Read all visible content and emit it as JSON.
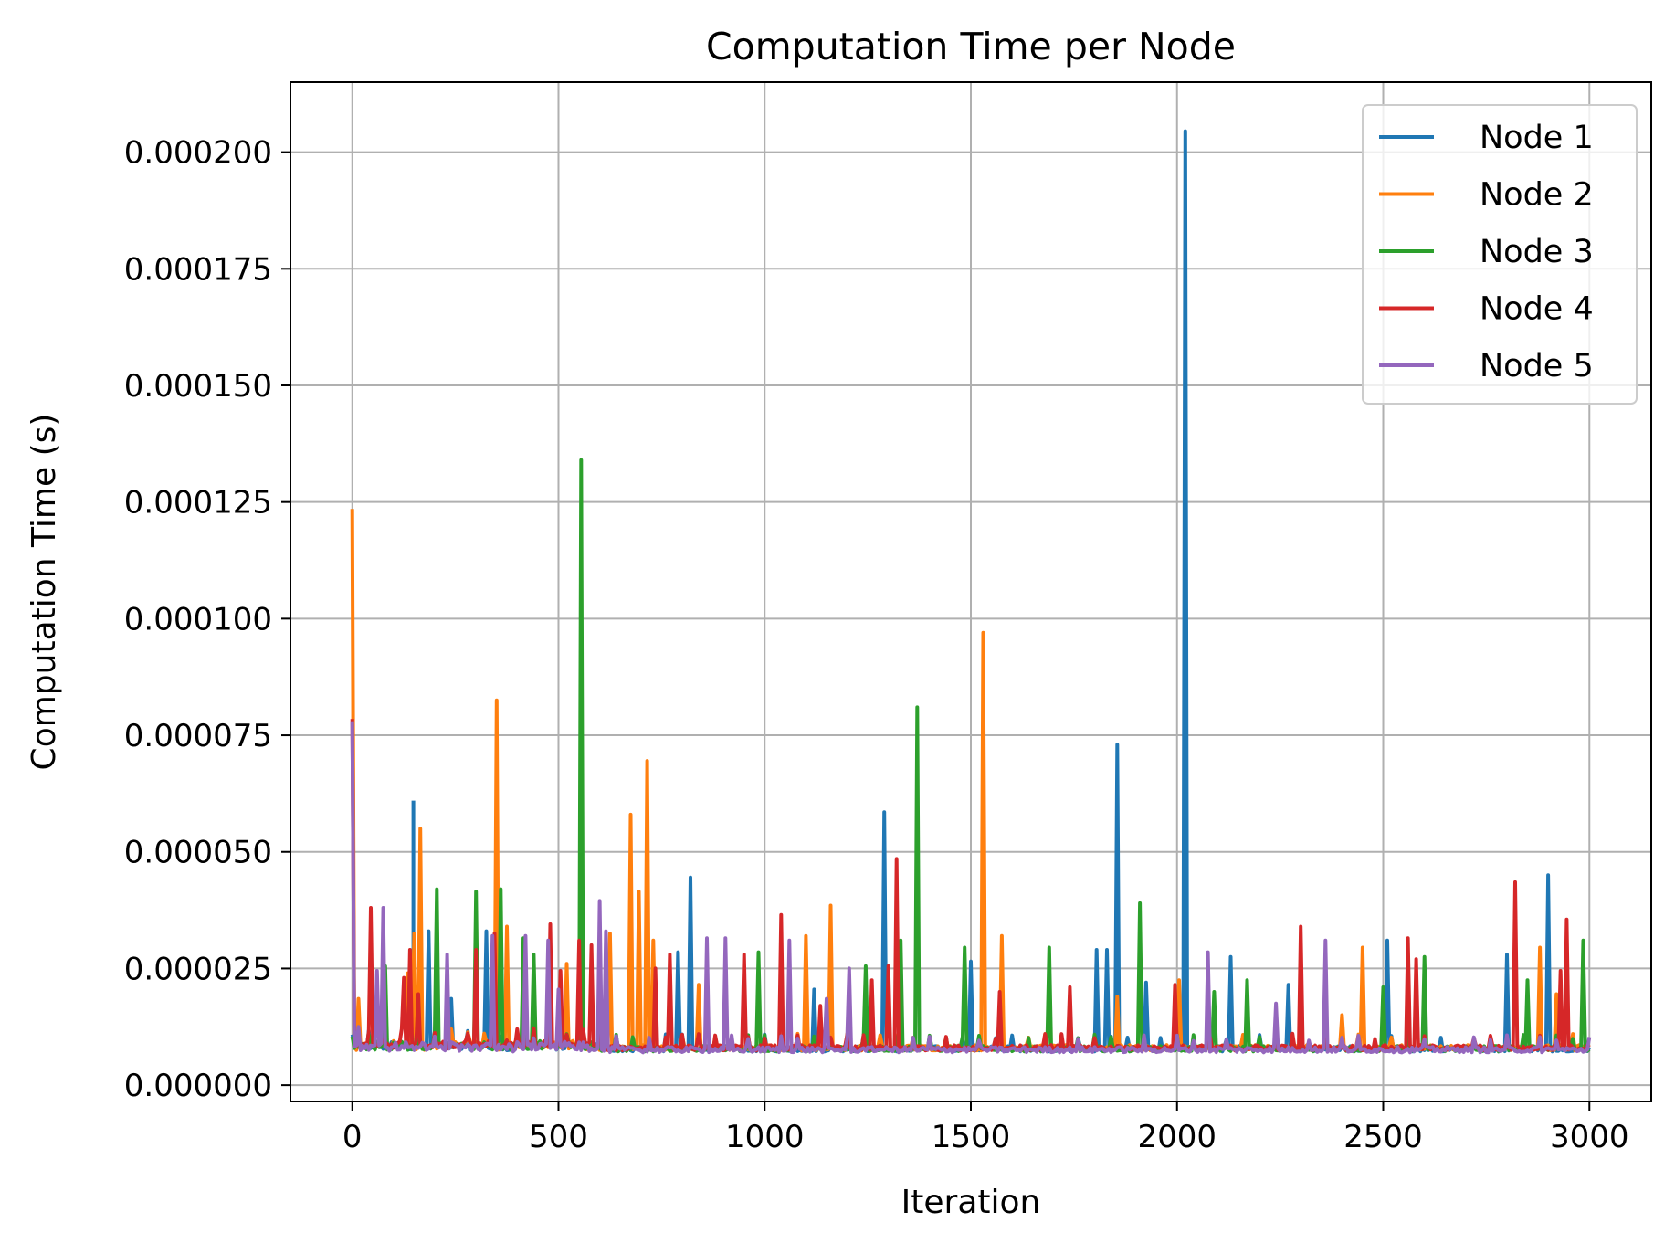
{
  "chart_data": {
    "type": "line",
    "title": "Computation Time per Node",
    "xlabel": "Iteration",
    "ylabel": "Computation Time (s)",
    "xlim": [
      -150,
      3150
    ],
    "ylim": [
      -3.5e-06,
      0.000215
    ],
    "xticks": [
      0,
      500,
      1000,
      1500,
      2000,
      2500,
      3000
    ],
    "xtick_labels": [
      "0",
      "500",
      "1000",
      "1500",
      "2000",
      "2500",
      "3000"
    ],
    "yticks": [
      0.0,
      2.5e-05,
      5e-05,
      7.5e-05,
      0.0001,
      0.000125,
      0.00015,
      0.000175,
      0.0002
    ],
    "ytick_labels": [
      "0.000000",
      "0.000025",
      "0.000050",
      "0.000075",
      "0.000100",
      "0.000125",
      "0.000150",
      "0.000175",
      "0.000200"
    ],
    "grid": true,
    "legend_position": "top-right",
    "series": [
      {
        "name": "Node 1",
        "color": "#1f77b4",
        "baseline": 7.8e-06,
        "spikes": [
          [
            148,
            6.1e-05
          ],
          [
            185,
            3.3e-05
          ],
          [
            240,
            1.85e-05
          ],
          [
            325,
            3.3e-05
          ],
          [
            820,
            4.45e-05
          ],
          [
            790,
            2.85e-05
          ],
          [
            1120,
            2.05e-05
          ],
          [
            1290,
            5.85e-05
          ],
          [
            1500,
            2.65e-05
          ],
          [
            1805,
            2.9e-05
          ],
          [
            1830,
            2.9e-05
          ],
          [
            1855,
            7.3e-05
          ],
          [
            1925,
            2.2e-05
          ],
          [
            2020,
            0.0002045
          ],
          [
            2130,
            2.75e-05
          ],
          [
            2270,
            2.15e-05
          ],
          [
            2510,
            3.1e-05
          ],
          [
            2800,
            2.8e-05
          ],
          [
            2900,
            4.5e-05
          ]
        ]
      },
      {
        "name": "Node 2",
        "color": "#ff7f0e",
        "baseline": 8e-06,
        "spikes": [
          [
            0,
            0.0001235
          ],
          [
            15,
            1.85e-05
          ],
          [
            135,
            2.4e-05
          ],
          [
            150,
            3.25e-05
          ],
          [
            165,
            5.5e-05
          ],
          [
            350,
            8.25e-05
          ],
          [
            375,
            3.4e-05
          ],
          [
            520,
            2.6e-05
          ],
          [
            625,
            3.25e-05
          ],
          [
            675,
            5.8e-05
          ],
          [
            695,
            4.15e-05
          ],
          [
            715,
            6.95e-05
          ],
          [
            730,
            3.1e-05
          ],
          [
            840,
            2.15e-05
          ],
          [
            1100,
            3.2e-05
          ],
          [
            1160,
            3.85e-05
          ],
          [
            1530,
            9.7e-05
          ],
          [
            1575,
            3.2e-05
          ],
          [
            1855,
            1.9e-05
          ],
          [
            2005,
            2.25e-05
          ],
          [
            2400,
            1.5e-05
          ],
          [
            2450,
            2.95e-05
          ],
          [
            2880,
            2.95e-05
          ],
          [
            2920,
            1.95e-05
          ]
        ]
      },
      {
        "name": "Node 3",
        "color": "#2ca02c",
        "baseline": 7.8e-06,
        "spikes": [
          [
            80,
            2.55e-05
          ],
          [
            205,
            4.2e-05
          ],
          [
            300,
            4.15e-05
          ],
          [
            360,
            4.2e-05
          ],
          [
            415,
            3.15e-05
          ],
          [
            440,
            2.8e-05
          ],
          [
            555,
            0.000134
          ],
          [
            985,
            2.85e-05
          ],
          [
            1245,
            2.55e-05
          ],
          [
            1330,
            3.1e-05
          ],
          [
            1370,
            8.1e-05
          ],
          [
            1485,
            2.95e-05
          ],
          [
            1690,
            2.95e-05
          ],
          [
            1910,
            3.9e-05
          ],
          [
            2090,
            2e-05
          ],
          [
            2170,
            2.25e-05
          ],
          [
            2500,
            2.1e-05
          ],
          [
            2600,
            2.75e-05
          ],
          [
            2850,
            2.25e-05
          ],
          [
            2985,
            3.1e-05
          ]
        ]
      },
      {
        "name": "Node 4",
        "color": "#d62728",
        "baseline": 8e-06,
        "spikes": [
          [
            0,
            7.85e-05
          ],
          [
            45,
            3.8e-05
          ],
          [
            125,
            2.3e-05
          ],
          [
            140,
            2.9e-05
          ],
          [
            160,
            1.95e-05
          ],
          [
            300,
            2.9e-05
          ],
          [
            345,
            3.25e-05
          ],
          [
            480,
            3.45e-05
          ],
          [
            505,
            2.45e-05
          ],
          [
            550,
            3.1e-05
          ],
          [
            580,
            3e-05
          ],
          [
            735,
            2.5e-05
          ],
          [
            770,
            2.8e-05
          ],
          [
            950,
            2.8e-05
          ],
          [
            1040,
            3.65e-05
          ],
          [
            1135,
            1.7e-05
          ],
          [
            1260,
            2.25e-05
          ],
          [
            1300,
            2.55e-05
          ],
          [
            1320,
            4.85e-05
          ],
          [
            1570,
            2e-05
          ],
          [
            1740,
            2.1e-05
          ],
          [
            1995,
            2.15e-05
          ],
          [
            2300,
            3.4e-05
          ],
          [
            2560,
            3.15e-05
          ],
          [
            2580,
            2.7e-05
          ],
          [
            2820,
            4.35e-05
          ],
          [
            2930,
            2.45e-05
          ],
          [
            2945,
            3.55e-05
          ]
        ]
      },
      {
        "name": "Node 5",
        "color": "#9467bd",
        "baseline": 7.6e-06,
        "spikes": [
          [
            0,
            7.8e-05
          ],
          [
            15,
            1.25e-05
          ],
          [
            60,
            2.45e-05
          ],
          [
            75,
            3.8e-05
          ],
          [
            230,
            2.8e-05
          ],
          [
            340,
            3.2e-05
          ],
          [
            420,
            3.2e-05
          ],
          [
            475,
            3.1e-05
          ],
          [
            500,
            2.05e-05
          ],
          [
            600,
            3.95e-05
          ],
          [
            615,
            3.3e-05
          ],
          [
            860,
            3.15e-05
          ],
          [
            905,
            3.15e-05
          ],
          [
            1060,
            3.1e-05
          ],
          [
            1150,
            1.85e-05
          ],
          [
            1205,
            2.5e-05
          ],
          [
            2075,
            2.85e-05
          ],
          [
            2240,
            1.75e-05
          ],
          [
            2360,
            3.1e-05
          ]
        ]
      }
    ]
  }
}
